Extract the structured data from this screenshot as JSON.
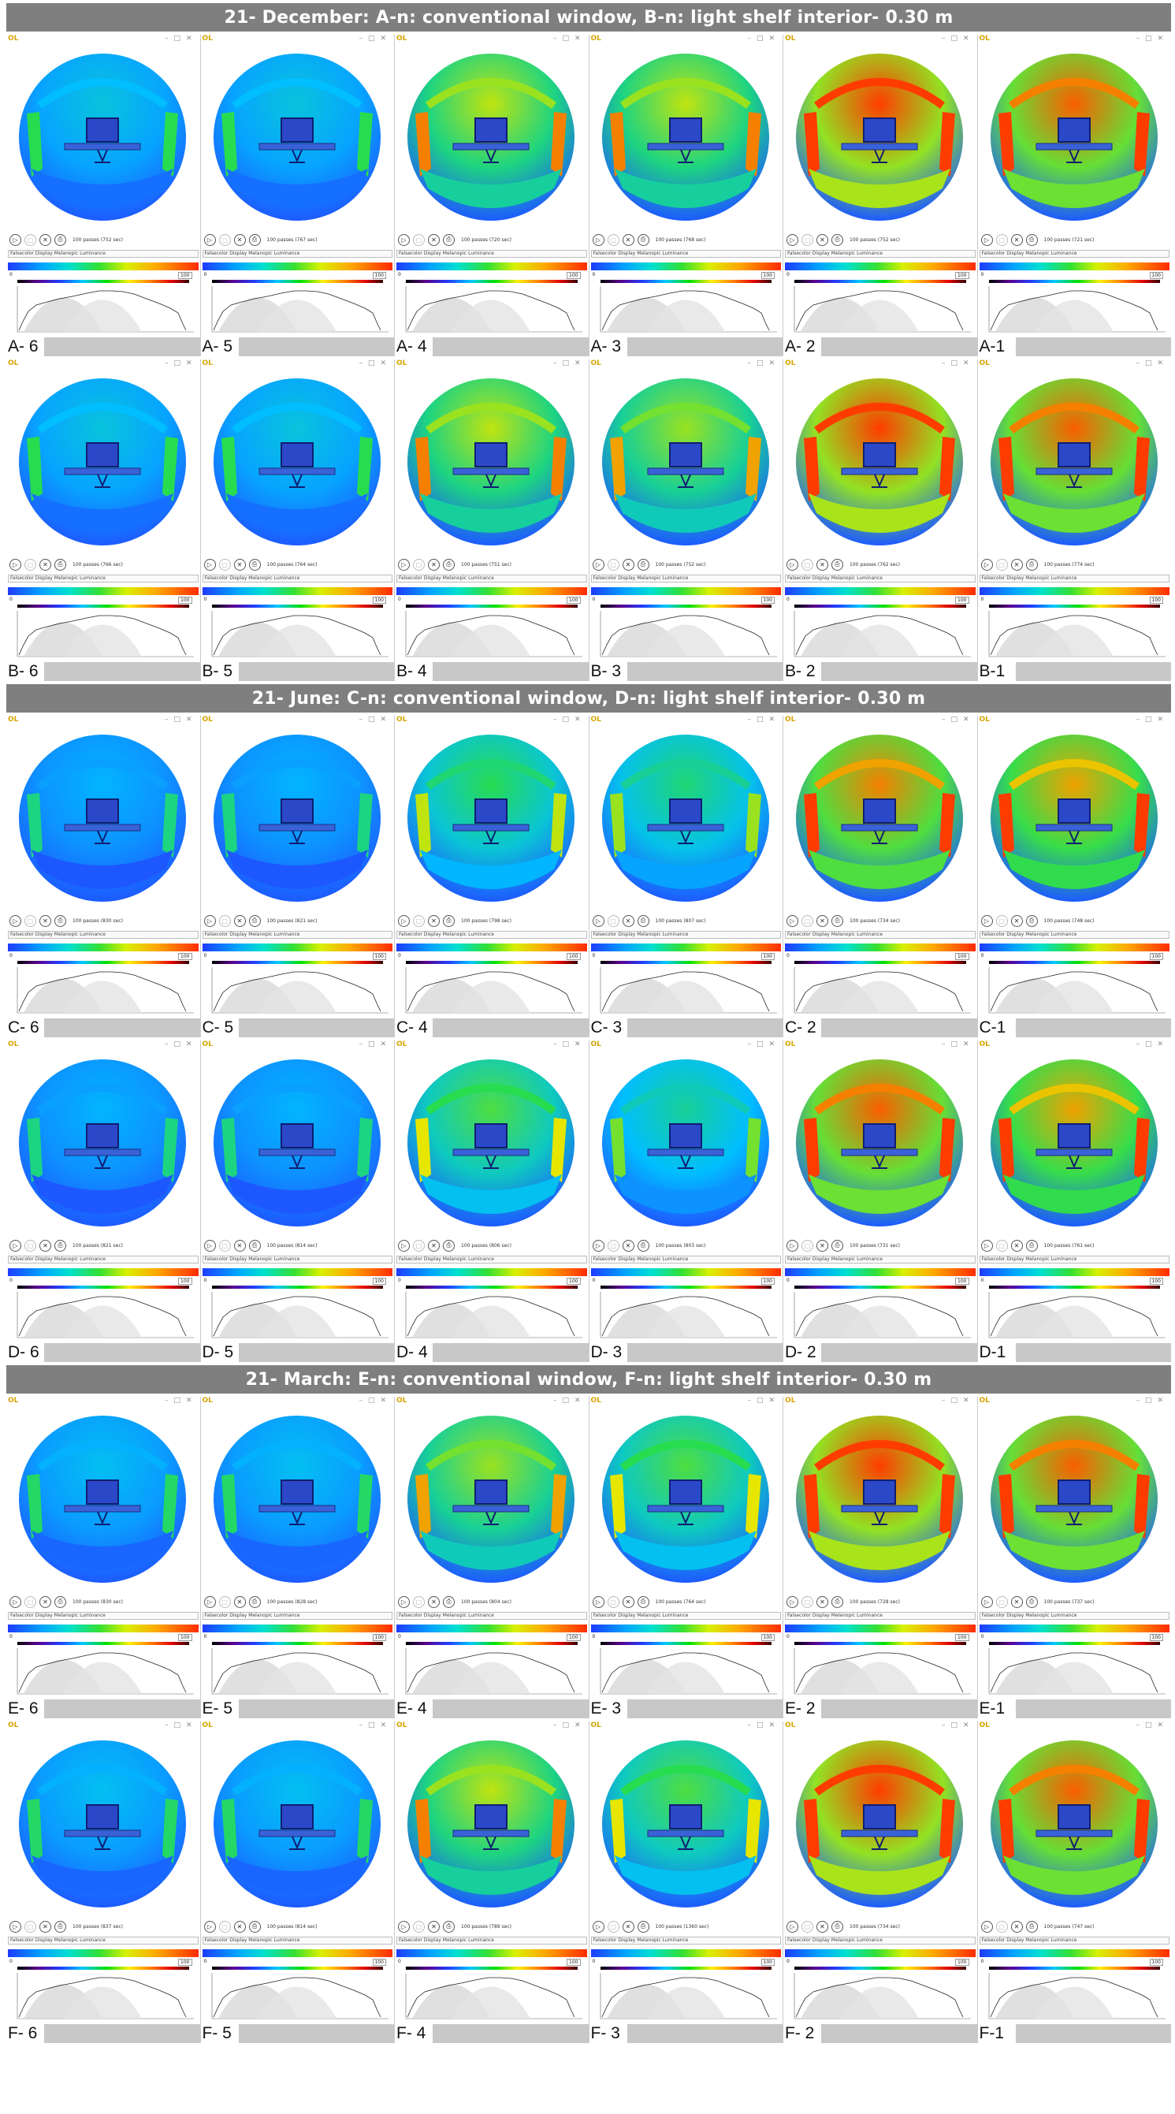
{
  "ui": {
    "app_badge": "OL",
    "window_controls": "–□✕",
    "selector_text": "Falsecolor Display Melanopic Luminance",
    "limit_low": "0",
    "limit_high": "100",
    "buttons": [
      "▷",
      "□",
      "✕",
      "⎙"
    ]
  },
  "colors": {
    "banner_bg": "#7f7f7f",
    "label_fill": "#c8c8c8",
    "hot": "#ff3a00",
    "cool": "#1f52ff"
  },
  "sections": [
    {
      "title": "21- December: A-n: conventional window, B-n: light shelf interior- 0.30 m",
      "rows": [
        {
          "panels": [
            {
              "label": "A- 6",
              "passes": "100 passes (752 sec)",
              "heat": 0.15
            },
            {
              "label": "A- 5",
              "passes": "100 passes (767 sec)",
              "heat": 0.15
            },
            {
              "label": "A- 4",
              "passes": "100 passes (720 sec)",
              "heat": 0.55
            },
            {
              "label": "A- 3",
              "passes": "100 passes (768 sec)",
              "heat": 0.55
            },
            {
              "label": "A- 2",
              "passes": "100 passes (752 sec)",
              "heat": 0.9
            },
            {
              "label": "A-1",
              "passes": "100 passes (721 sec)",
              "heat": 0.8
            }
          ]
        },
        {
          "panels": [
            {
              "label": "B- 6",
              "passes": "100 passes (766 sec)",
              "heat": 0.15
            },
            {
              "label": "B- 5",
              "passes": "100 passes (764 sec)",
              "heat": 0.15
            },
            {
              "label": "B- 4",
              "passes": "100 passes (751 sec)",
              "heat": 0.55
            },
            {
              "label": "B- 3",
              "passes": "100 passes (752 sec)",
              "heat": 0.5
            },
            {
              "label": "B- 2",
              "passes": "100 passes (762 sec)",
              "heat": 0.9
            },
            {
              "label": "B-1",
              "passes": "100 passes (774 sec)",
              "heat": 0.8
            }
          ]
        }
      ]
    },
    {
      "title": "21- June: C-n: conventional window, D-n: light shelf interior- 0.30 m",
      "rows": [
        {
          "panels": [
            {
              "label": "C- 6",
              "passes": "100 passes (830 sec)",
              "heat": 0.08
            },
            {
              "label": "C- 5",
              "passes": "100 passes (821 sec)",
              "heat": 0.08
            },
            {
              "label": "C- 4",
              "passes": "100 passes (798 sec)",
              "heat": 0.35
            },
            {
              "label": "C- 3",
              "passes": "100 passes (807 sec)",
              "heat": 0.3
            },
            {
              "label": "C- 2",
              "passes": "100 passes (734 sec)",
              "heat": 0.75
            },
            {
              "label": "C-1",
              "passes": "100 passes (748 sec)",
              "heat": 0.7
            }
          ]
        },
        {
          "panels": [
            {
              "label": "D- 6",
              "passes": "100 passes (821 sec)",
              "heat": 0.08
            },
            {
              "label": "D- 5",
              "passes": "100 passes (814 sec)",
              "heat": 0.08
            },
            {
              "label": "D- 4",
              "passes": "100 passes (806 sec)",
              "heat": 0.4
            },
            {
              "label": "D- 3",
              "passes": "100 passes (803 sec)",
              "heat": 0.25
            },
            {
              "label": "D- 2",
              "passes": "100 passes (731 sec)",
              "heat": 0.8
            },
            {
              "label": "D-1",
              "passes": "100 passes (761 sec)",
              "heat": 0.7
            }
          ]
        }
      ]
    },
    {
      "title": "21- March: E-n: conventional window, F-n: light shelf interior- 0.30 m",
      "rows": [
        {
          "panels": [
            {
              "label": "E- 6",
              "passes": "100 passes (830 sec)",
              "heat": 0.12
            },
            {
              "label": "E- 5",
              "passes": "100 passes (828 sec)",
              "heat": 0.12
            },
            {
              "label": "E- 4",
              "passes": "100 passes (804 sec)",
              "heat": 0.5
            },
            {
              "label": "E- 3",
              "passes": "100 passes (764 sec)",
              "heat": 0.4
            },
            {
              "label": "E- 2",
              "passes": "100 passes (728 sec)",
              "heat": 0.9
            },
            {
              "label": "E-1",
              "passes": "100 passes (737 sec)",
              "heat": 0.8
            }
          ]
        },
        {
          "panels": [
            {
              "label": "F- 6",
              "passes": "100 passes (837 sec)",
              "heat": 0.12
            },
            {
              "label": "F- 5",
              "passes": "100 passes (814 sec)",
              "heat": 0.12
            },
            {
              "label": "F- 4",
              "passes": "100 passes (789 sec)",
              "heat": 0.55
            },
            {
              "label": "F- 3",
              "passes": "100 passes (1360 sec)",
              "heat": 0.4
            },
            {
              "label": "F- 2",
              "passes": "100 passes (734 sec)",
              "heat": 0.9
            },
            {
              "label": "F-1",
              "passes": "100 passes (747 sec)",
              "heat": 0.8
            }
          ]
        }
      ]
    }
  ]
}
